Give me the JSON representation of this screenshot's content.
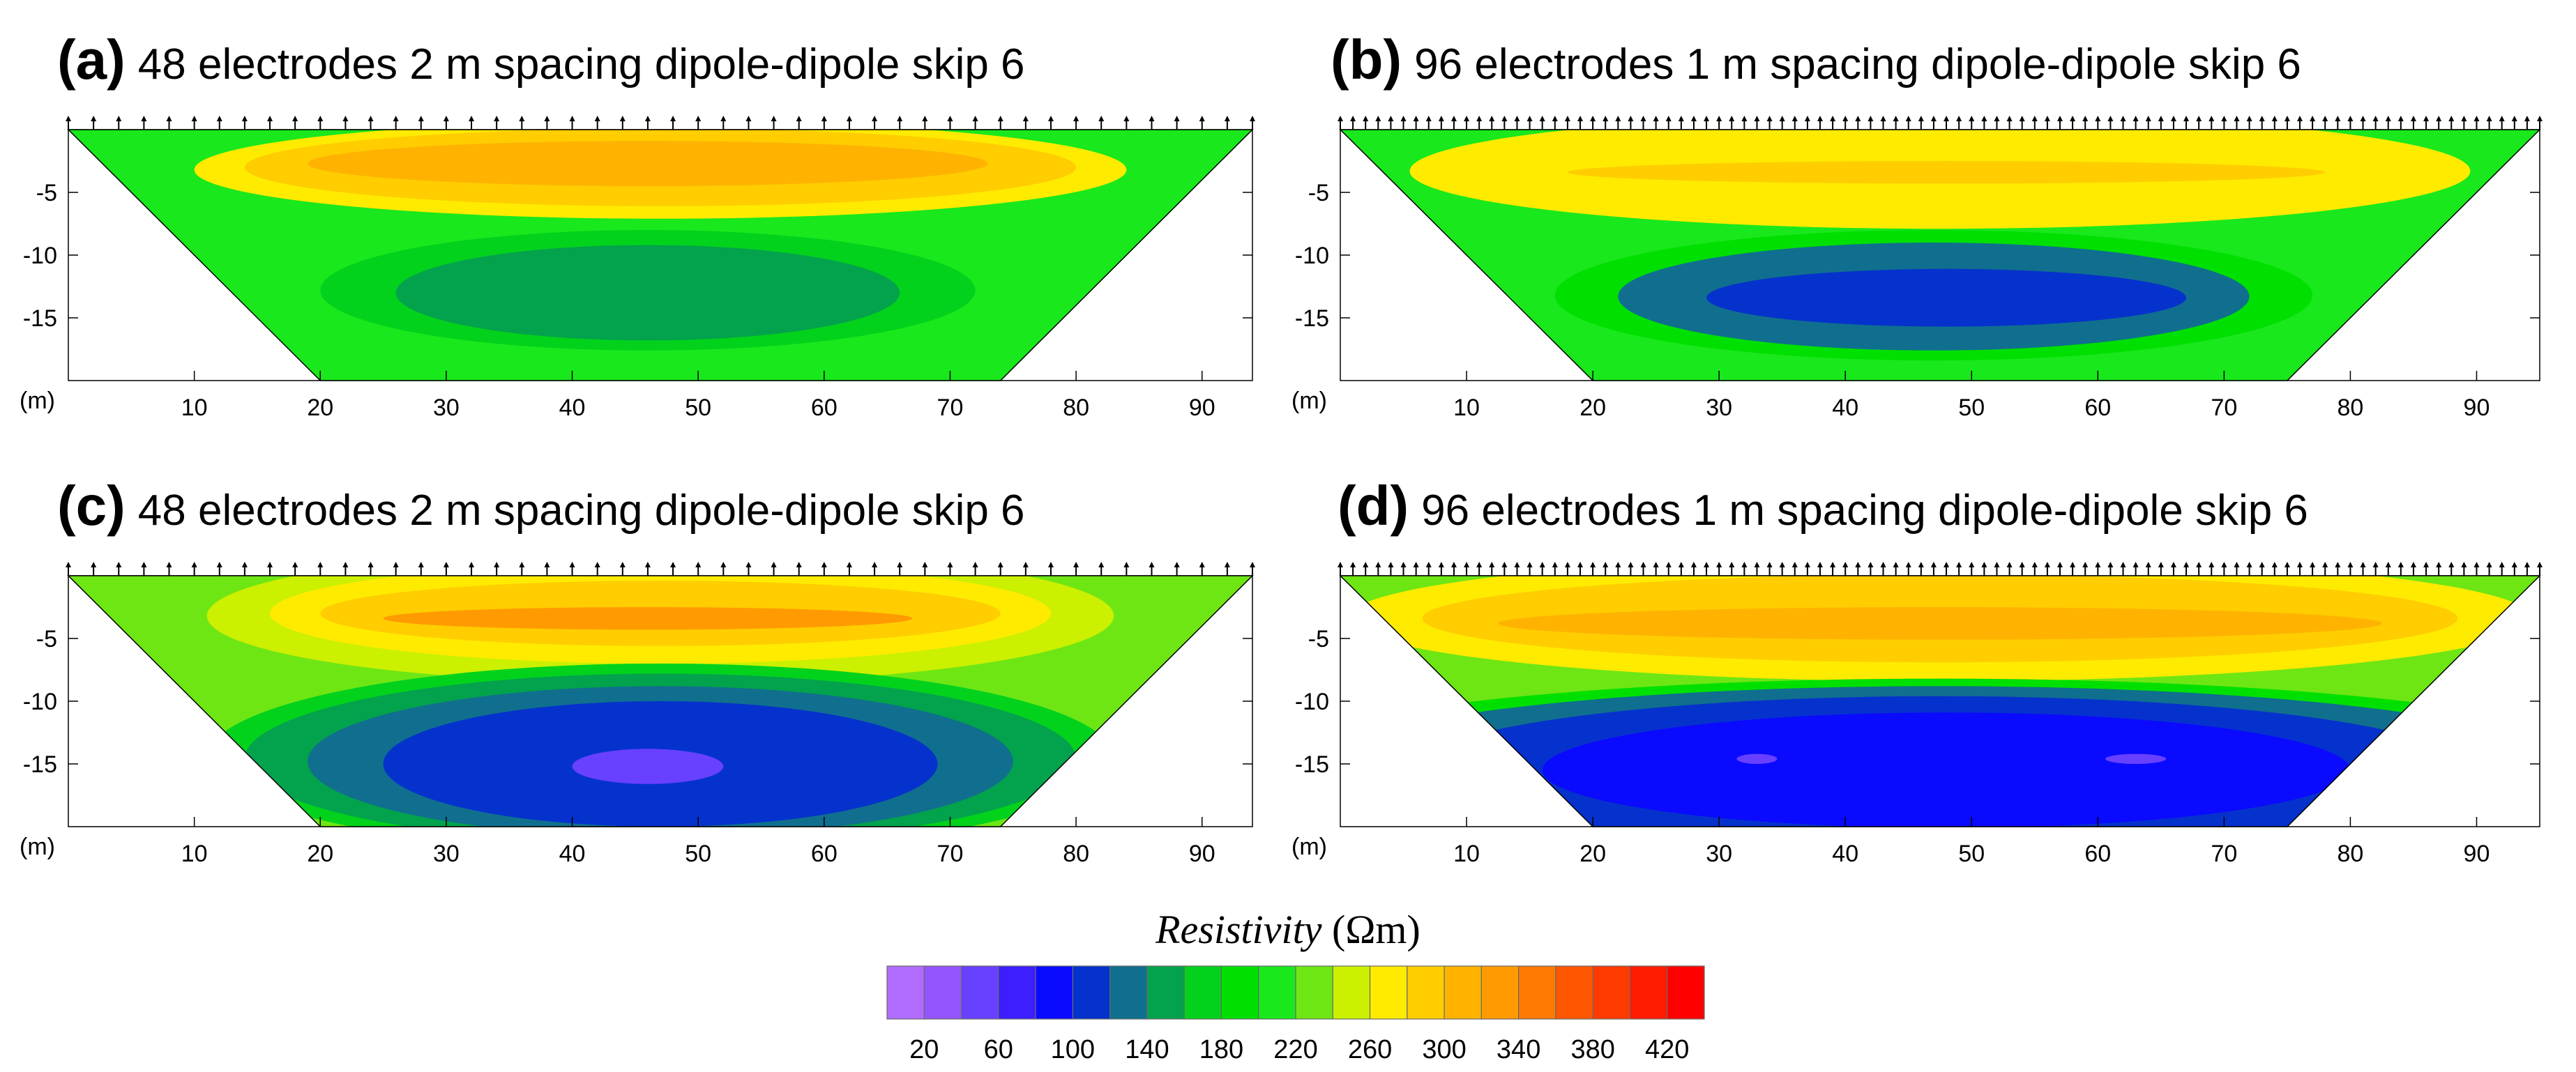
{
  "chart_data": [
    {
      "type": "heatmap",
      "panel": "(a)",
      "title": "48 electrodes 2 m spacing dipole-dipole skip 6",
      "electrodes": 48,
      "spacing_m": 2,
      "x_range": [
        0,
        94
      ],
      "y_range": [
        -20,
        0
      ],
      "x_ticks": [
        10,
        20,
        30,
        40,
        50,
        60,
        70,
        80,
        90
      ],
      "y_ticks": [
        -5,
        -10,
        -15
      ],
      "unit_label": "(m)",
      "trapezoid_bottom_x": [
        20,
        74
      ],
      "bands": [
        {
          "cx": 47,
          "cy": -12,
          "rx": 68,
          "ry": 30,
          "value": 270
        },
        {
          "cx": 47,
          "cy": -11.5,
          "rx": 60,
          "ry": 26,
          "value": 210
        },
        {
          "cx": 47,
          "cy": -3.2,
          "rx": 37,
          "ry": 3.9,
          "value": 260
        },
        {
          "cx": 47,
          "cy": -3.0,
          "rx": 33,
          "ry": 3.1,
          "value": 280
        },
        {
          "cx": 46,
          "cy": -2.7,
          "rx": 27,
          "ry": 1.8,
          "value": 300
        },
        {
          "cx": 46,
          "cy": -12.8,
          "rx": 26,
          "ry": 4.8,
          "value": 170
        },
        {
          "cx": 46,
          "cy": -13.0,
          "rx": 20,
          "ry": 3.8,
          "value": 145
        }
      ]
    },
    {
      "type": "heatmap",
      "panel": "(b)",
      "title": "96 electrodes 1 m spacing dipole-dipole skip 6",
      "electrodes": 96,
      "spacing_m": 1,
      "x_range": [
        0,
        95
      ],
      "y_range": [
        -20,
        0
      ],
      "x_ticks": [
        10,
        20,
        30,
        40,
        50,
        60,
        70,
        80,
        90
      ],
      "y_ticks": [
        -5,
        -10,
        -15
      ],
      "unit_label": "(m)",
      "trapezoid_bottom_x": [
        20,
        75
      ],
      "bands": [
        {
          "cx": 47.5,
          "cy": -13,
          "rx": 70,
          "ry": 30,
          "value": 240
        },
        {
          "cx": 47.5,
          "cy": -12.5,
          "rx": 58,
          "ry": 25,
          "value": 200
        },
        {
          "cx": 47.5,
          "cy": -3.3,
          "rx": 42,
          "ry": 4.6,
          "value": 265
        },
        {
          "cx": 47.5,
          "cy": -2.9,
          "rx": 38,
          "ry": 3.6,
          "value": 270
        },
        {
          "cx": 48,
          "cy": -3.4,
          "rx": 30,
          "ry": 0.9,
          "value": 290
        },
        {
          "cx": 47,
          "cy": -13.2,
          "rx": 30,
          "ry": 5.2,
          "value": 180
        },
        {
          "cx": 47,
          "cy": -13.3,
          "rx": 25,
          "ry": 4.3,
          "value": 130
        },
        {
          "cx": 48,
          "cy": -13.4,
          "rx": 19,
          "ry": 2.3,
          "value": 110
        }
      ]
    },
    {
      "type": "heatmap",
      "panel": "(c)",
      "title": "48 electrodes 2 m spacing dipole-dipole skip 6",
      "electrodes": 48,
      "spacing_m": 2,
      "x_range": [
        0,
        94
      ],
      "y_range": [
        -20,
        0
      ],
      "x_ticks": [
        10,
        20,
        30,
        40,
        50,
        60,
        70,
        80,
        90
      ],
      "y_ticks": [
        -5,
        -10,
        -15
      ],
      "unit_label": "(m)",
      "trapezoid_bottom_x": [
        20,
        74
      ],
      "bands": [
        {
          "cx": 47,
          "cy": -3.2,
          "rx": 36,
          "ry": 5.4,
          "value": 255
        },
        {
          "cx": 47,
          "cy": -3.0,
          "rx": 31,
          "ry": 4.0,
          "value": 275
        },
        {
          "cx": 47,
          "cy": -3.0,
          "rx": 27,
          "ry": 2.6,
          "value": 295
        },
        {
          "cx": 46,
          "cy": -3.4,
          "rx": 21,
          "ry": 0.9,
          "value": 320
        },
        {
          "cx": 47,
          "cy": -14.5,
          "rx": 36,
          "ry": 7.5,
          "value": 175
        },
        {
          "cx": 47,
          "cy": -14.6,
          "rx": 33,
          "ry": 6.8,
          "value": 145
        },
        {
          "cx": 47,
          "cy": -14.8,
          "rx": 28,
          "ry": 6.0,
          "value": 120
        },
        {
          "cx": 47,
          "cy": -15.0,
          "rx": 22,
          "ry": 5.0,
          "value": 100
        },
        {
          "cx": 46,
          "cy": -15.2,
          "rx": 6,
          "ry": 1.4,
          "value": 50
        }
      ]
    },
    {
      "type": "heatmap",
      "panel": "(d)",
      "title": "96 electrodes 1 m spacing dipole-dipole skip 6",
      "electrodes": 96,
      "spacing_m": 1,
      "x_range": [
        0,
        95
      ],
      "y_range": [
        -20,
        0
      ],
      "x_ticks": [
        10,
        20,
        30,
        40,
        50,
        60,
        70,
        80,
        90
      ],
      "y_ticks": [
        -5,
        -10,
        -15
      ],
      "unit_label": "(m)",
      "trapezoid_bottom_x": [
        20,
        75
      ],
      "bands": [
        {
          "cx": 47.5,
          "cy": -3.4,
          "rx": 47,
          "ry": 5.0,
          "value": 265
        },
        {
          "cx": 47.5,
          "cy": -3.4,
          "rx": 41,
          "ry": 3.5,
          "value": 285
        },
        {
          "cx": 47.5,
          "cy": -3.8,
          "rx": 35,
          "ry": 1.3,
          "value": 310
        },
        {
          "cx": 47.5,
          "cy": -15.2,
          "rx": 55,
          "ry": 7.0,
          "value": 185
        },
        {
          "cx": 47.5,
          "cy": -15.3,
          "rx": 50,
          "ry": 6.5,
          "value": 130
        },
        {
          "cx": 47.5,
          "cy": -15.5,
          "rx": 42,
          "ry": 5.9,
          "value": 105
        },
        {
          "cx": 48,
          "cy": -15.5,
          "rx": 32,
          "ry": 4.6,
          "value": 90
        },
        {
          "cx": 33,
          "cy": -14.6,
          "rx": 1.6,
          "ry": 0.4,
          "value": 50
        },
        {
          "cx": 63,
          "cy": -14.6,
          "rx": 2.4,
          "ry": 0.4,
          "value": 50
        }
      ]
    }
  ],
  "colorbar": {
    "title": "Resistivity",
    "unit": "(Ωm)",
    "min": 0,
    "step": 20,
    "colors": [
      "#b06cff",
      "#9455ff",
      "#6840ff",
      "#3c1eff",
      "#0a0aff",
      "#0532cc",
      "#106f8e",
      "#02a34c",
      "#02d21c",
      "#00e000",
      "#19e81c",
      "#6ee614",
      "#cbf000",
      "#ffeb00",
      "#ffcd00",
      "#ffb300",
      "#ff9b00",
      "#ff7a00",
      "#ff5600",
      "#ff3a00",
      "#ff1c00",
      "#ff0000"
    ],
    "tick_labels": [
      "20",
      "60",
      "100",
      "140",
      "180",
      "220",
      "260",
      "300",
      "340",
      "380",
      "420"
    ]
  }
}
